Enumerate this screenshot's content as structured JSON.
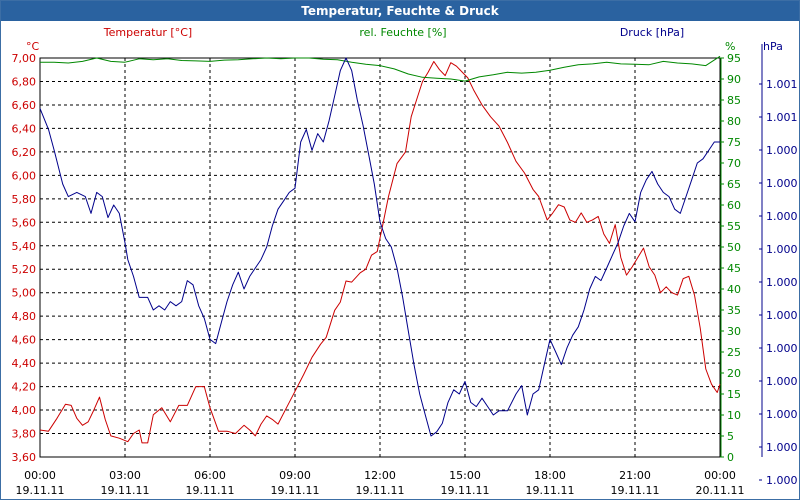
{
  "window": {
    "title": "Temperatur, Feuchte & Druck"
  },
  "colors": {
    "temp": "#cc0000",
    "hum": "#008800",
    "press": "#00008b",
    "title_bg": "#2a62a0",
    "grid": "#000000"
  },
  "chart_data": {
    "type": "line",
    "title": "Temperatur, Feuchte & Druck",
    "legend": {
      "temp": "Temperatur [°C]",
      "hum": "rel. Feuchte [%]",
      "press": "Druck [hPa]"
    },
    "units": {
      "left": "°C",
      "right_hum": "%",
      "right_press": "hPa"
    },
    "x_range_hours": [
      0,
      24
    ],
    "x_ticks": [
      {
        "h": 0,
        "time": "00:00",
        "date": "19.11.11"
      },
      {
        "h": 3,
        "time": "03:00",
        "date": "19.11.11"
      },
      {
        "h": 6,
        "time": "06:00",
        "date": "19.11.11"
      },
      {
        "h": 9,
        "time": "09:00",
        "date": "19.11.11"
      },
      {
        "h": 12,
        "time": "12:00",
        "date": "19.11.11"
      },
      {
        "h": 15,
        "time": "15:00",
        "date": "19.11.11"
      },
      {
        "h": 18,
        "time": "18:00",
        "date": "19.11.11"
      },
      {
        "h": 21,
        "time": "21:00",
        "date": "19.11.11"
      },
      {
        "h": 24,
        "time": "00:00",
        "date": "20.11.11"
      }
    ],
    "temp_axis": {
      "ylim": [
        3.6,
        7.0
      ],
      "ticks": [
        "3,60",
        "3,80",
        "4,00",
        "4,20",
        "4,40",
        "4,60",
        "4,80",
        "5,00",
        "5,20",
        "5,40",
        "5,60",
        "5,80",
        "6,00",
        "6,20",
        "6,40",
        "6,60",
        "6,80",
        "7,00"
      ]
    },
    "hum_axis": {
      "ylim": [
        0,
        95
      ],
      "ticks": [
        "0",
        "5",
        "10",
        "15",
        "20",
        "25",
        "30",
        "35",
        "40",
        "45",
        "50",
        "55",
        "60",
        "65",
        "70",
        "75",
        "80",
        "85",
        "90",
        "95"
      ]
    },
    "press_axis": {
      "labels": [
        "1.001",
        "1.001",
        "1.000",
        "1.000",
        "1.000",
        "1.000",
        "1.000",
        "1.000",
        "1.000",
        "1.000",
        "1.000",
        "1.000",
        "1.000"
      ]
    },
    "series": [
      {
        "name": "Temperatur [°C]",
        "axis": "temp",
        "points": [
          [
            0,
            3.83
          ],
          [
            0.3,
            3.82
          ],
          [
            0.6,
            3.93
          ],
          [
            0.9,
            4.05
          ],
          [
            1.1,
            4.04
          ],
          [
            1.3,
            3.93
          ],
          [
            1.5,
            3.87
          ],
          [
            1.7,
            3.9
          ],
          [
            1.9,
            4.0
          ],
          [
            2.1,
            4.11
          ],
          [
            2.3,
            3.92
          ],
          [
            2.5,
            3.78
          ],
          [
            2.8,
            3.76
          ],
          [
            3.1,
            3.73
          ],
          [
            3.3,
            3.8
          ],
          [
            3.5,
            3.83
          ],
          [
            3.6,
            3.72
          ],
          [
            3.8,
            3.72
          ],
          [
            4.0,
            3.96
          ],
          [
            4.3,
            4.02
          ],
          [
            4.6,
            3.9
          ],
          [
            4.9,
            4.04
          ],
          [
            5.2,
            4.04
          ],
          [
            5.5,
            4.2
          ],
          [
            5.8,
            4.2
          ],
          [
            6.0,
            4.02
          ],
          [
            6.3,
            3.82
          ],
          [
            6.6,
            3.82
          ],
          [
            6.9,
            3.8
          ],
          [
            7.2,
            3.87
          ],
          [
            7.4,
            3.83
          ],
          [
            7.6,
            3.78
          ],
          [
            7.8,
            3.88
          ],
          [
            8.0,
            3.95
          ],
          [
            8.2,
            3.92
          ],
          [
            8.4,
            3.88
          ],
          [
            8.7,
            4.02
          ],
          [
            9.0,
            4.16
          ],
          [
            9.3,
            4.3
          ],
          [
            9.6,
            4.45
          ],
          [
            9.9,
            4.56
          ],
          [
            10.1,
            4.62
          ],
          [
            10.4,
            4.85
          ],
          [
            10.6,
            4.92
          ],
          [
            10.8,
            5.1
          ],
          [
            11.0,
            5.09
          ],
          [
            11.3,
            5.17
          ],
          [
            11.5,
            5.2
          ],
          [
            11.7,
            5.32
          ],
          [
            11.9,
            5.35
          ],
          [
            12.1,
            5.58
          ],
          [
            12.3,
            5.82
          ],
          [
            12.6,
            6.1
          ],
          [
            12.9,
            6.2
          ],
          [
            13.1,
            6.5
          ],
          [
            13.3,
            6.65
          ],
          [
            13.5,
            6.8
          ],
          [
            13.7,
            6.88
          ],
          [
            13.9,
            6.97
          ],
          [
            14.1,
            6.9
          ],
          [
            14.3,
            6.85
          ],
          [
            14.5,
            6.96
          ],
          [
            14.7,
            6.93
          ],
          [
            14.9,
            6.88
          ],
          [
            15.1,
            6.83
          ],
          [
            15.3,
            6.73
          ],
          [
            15.6,
            6.6
          ],
          [
            15.9,
            6.5
          ],
          [
            16.2,
            6.42
          ],
          [
            16.5,
            6.28
          ],
          [
            16.8,
            6.12
          ],
          [
            17.1,
            6.02
          ],
          [
            17.4,
            5.88
          ],
          [
            17.6,
            5.82
          ],
          [
            17.9,
            5.62
          ],
          [
            18.1,
            5.68
          ],
          [
            18.3,
            5.75
          ],
          [
            18.5,
            5.73
          ],
          [
            18.7,
            5.62
          ],
          [
            18.9,
            5.6
          ],
          [
            19.1,
            5.68
          ],
          [
            19.3,
            5.6
          ],
          [
            19.5,
            5.62
          ],
          [
            19.7,
            5.65
          ],
          [
            19.9,
            5.5
          ],
          [
            20.1,
            5.42
          ],
          [
            20.3,
            5.58
          ],
          [
            20.5,
            5.3
          ],
          [
            20.7,
            5.15
          ],
          [
            20.9,
            5.22
          ],
          [
            21.1,
            5.3
          ],
          [
            21.3,
            5.38
          ],
          [
            21.5,
            5.22
          ],
          [
            21.7,
            5.15
          ],
          [
            21.9,
            5.0
          ],
          [
            22.1,
            5.05
          ],
          [
            22.3,
            5.0
          ],
          [
            22.5,
            4.98
          ],
          [
            22.7,
            5.12
          ],
          [
            22.9,
            5.14
          ],
          [
            23.1,
            4.98
          ],
          [
            23.3,
            4.7
          ],
          [
            23.5,
            4.35
          ],
          [
            23.7,
            4.22
          ],
          [
            23.9,
            4.15
          ],
          [
            24.0,
            4.22
          ]
        ]
      },
      {
        "name": "rel. Feuchte [%]",
        "axis": "hum",
        "points": [
          [
            0,
            94
          ],
          [
            0.5,
            94
          ],
          [
            1.0,
            93.8
          ],
          [
            1.5,
            94.2
          ],
          [
            2.0,
            95
          ],
          [
            2.5,
            94.2
          ],
          [
            3.0,
            94
          ],
          [
            3.5,
            94.8
          ],
          [
            4.0,
            94.6
          ],
          [
            4.5,
            94.8
          ],
          [
            5.0,
            94.4
          ],
          [
            5.5,
            94.3
          ],
          [
            6.0,
            94.2
          ],
          [
            6.5,
            94.5
          ],
          [
            7.0,
            94.6
          ],
          [
            7.5,
            94.8
          ],
          [
            8.0,
            95
          ],
          [
            8.5,
            94.8
          ],
          [
            9.0,
            95
          ],
          [
            9.5,
            95
          ],
          [
            10.0,
            94.7
          ],
          [
            10.5,
            94.6
          ],
          [
            11.0,
            94
          ],
          [
            11.5,
            93.5
          ],
          [
            12.0,
            93.2
          ],
          [
            12.5,
            92.4
          ],
          [
            13.0,
            91.2
          ],
          [
            13.5,
            90.4
          ],
          [
            14.0,
            90.2
          ],
          [
            14.5,
            90
          ],
          [
            15.0,
            89.5
          ],
          [
            15.5,
            90.5
          ],
          [
            16.0,
            91
          ],
          [
            16.5,
            91.6
          ],
          [
            17.0,
            91.4
          ],
          [
            17.5,
            91.6
          ],
          [
            18.0,
            92.1
          ],
          [
            18.5,
            92.8
          ],
          [
            19.0,
            93.4
          ],
          [
            19.5,
            93.6
          ],
          [
            20.0,
            94
          ],
          [
            20.5,
            93.6
          ],
          [
            21.0,
            93.5
          ],
          [
            21.5,
            93.4
          ],
          [
            22.0,
            94.2
          ],
          [
            22.5,
            93.8
          ],
          [
            23.0,
            93.6
          ],
          [
            23.5,
            93.2
          ],
          [
            24.0,
            95.4
          ]
        ]
      },
      {
        "name": "Druck [hPa]",
        "axis": "press",
        "points": [
          [
            0,
            83
          ],
          [
            0.3,
            78
          ],
          [
            0.5,
            73
          ],
          [
            0.8,
            65
          ],
          [
            1.0,
            62
          ],
          [
            1.3,
            63
          ],
          [
            1.6,
            62
          ],
          [
            1.8,
            58
          ],
          [
            2.0,
            63
          ],
          [
            2.2,
            62
          ],
          [
            2.4,
            57
          ],
          [
            2.6,
            60
          ],
          [
            2.8,
            58
          ],
          [
            3.0,
            51
          ],
          [
            3.1,
            47
          ],
          [
            3.3,
            43
          ],
          [
            3.5,
            38
          ],
          [
            3.8,
            38
          ],
          [
            4.0,
            35
          ],
          [
            4.2,
            36
          ],
          [
            4.4,
            35
          ],
          [
            4.6,
            37
          ],
          [
            4.8,
            36
          ],
          [
            5.0,
            37
          ],
          [
            5.2,
            42
          ],
          [
            5.4,
            41
          ],
          [
            5.6,
            36
          ],
          [
            5.8,
            33
          ],
          [
            6.0,
            28
          ],
          [
            6.2,
            27
          ],
          [
            6.4,
            32
          ],
          [
            6.6,
            37
          ],
          [
            6.8,
            41
          ],
          [
            7.0,
            44
          ],
          [
            7.2,
            40
          ],
          [
            7.4,
            43
          ],
          [
            7.6,
            45
          ],
          [
            7.8,
            47
          ],
          [
            8.0,
            50
          ],
          [
            8.2,
            55
          ],
          [
            8.4,
            59
          ],
          [
            8.6,
            61
          ],
          [
            8.8,
            63
          ],
          [
            9.0,
            64
          ],
          [
            9.2,
            75
          ],
          [
            9.4,
            78
          ],
          [
            9.6,
            73
          ],
          [
            9.8,
            77
          ],
          [
            10.0,
            75
          ],
          [
            10.2,
            80
          ],
          [
            10.4,
            86
          ],
          [
            10.6,
            92
          ],
          [
            10.8,
            95
          ],
          [
            11.0,
            92
          ],
          [
            11.2,
            85
          ],
          [
            11.4,
            79
          ],
          [
            11.6,
            72
          ],
          [
            11.8,
            65
          ],
          [
            12.0,
            56
          ],
          [
            12.2,
            52
          ],
          [
            12.4,
            50
          ],
          [
            12.6,
            45
          ],
          [
            12.8,
            38
          ],
          [
            13.0,
            30
          ],
          [
            13.2,
            22
          ],
          [
            13.4,
            15
          ],
          [
            13.6,
            10
          ],
          [
            13.8,
            5
          ],
          [
            14.0,
            6
          ],
          [
            14.2,
            8
          ],
          [
            14.4,
            13
          ],
          [
            14.6,
            16
          ],
          [
            14.8,
            15
          ],
          [
            15.0,
            18
          ],
          [
            15.2,
            13
          ],
          [
            15.4,
            12
          ],
          [
            15.6,
            14
          ],
          [
            15.8,
            12
          ],
          [
            16.0,
            10
          ],
          [
            16.2,
            11
          ],
          [
            16.5,
            11
          ],
          [
            16.8,
            15
          ],
          [
            17.0,
            17
          ],
          [
            17.2,
            10
          ],
          [
            17.4,
            15
          ],
          [
            17.6,
            16
          ],
          [
            17.8,
            22
          ],
          [
            18.0,
            28
          ],
          [
            18.2,
            25
          ],
          [
            18.4,
            22
          ],
          [
            18.6,
            26
          ],
          [
            18.8,
            29
          ],
          [
            19.0,
            31
          ],
          [
            19.2,
            35
          ],
          [
            19.4,
            40
          ],
          [
            19.6,
            43
          ],
          [
            19.8,
            42
          ],
          [
            20.0,
            45
          ],
          [
            20.2,
            48
          ],
          [
            20.4,
            51
          ],
          [
            20.6,
            55
          ],
          [
            20.8,
            58
          ],
          [
            21.0,
            56
          ],
          [
            21.2,
            63
          ],
          [
            21.4,
            66
          ],
          [
            21.6,
            68
          ],
          [
            21.8,
            65
          ],
          [
            22.0,
            63
          ],
          [
            22.2,
            62
          ],
          [
            22.4,
            59
          ],
          [
            22.6,
            58
          ],
          [
            22.8,
            62
          ],
          [
            23.0,
            66
          ],
          [
            23.2,
            70
          ],
          [
            23.4,
            71
          ],
          [
            23.6,
            73
          ],
          [
            23.8,
            75
          ],
          [
            24.0,
            75
          ]
        ]
      }
    ]
  }
}
